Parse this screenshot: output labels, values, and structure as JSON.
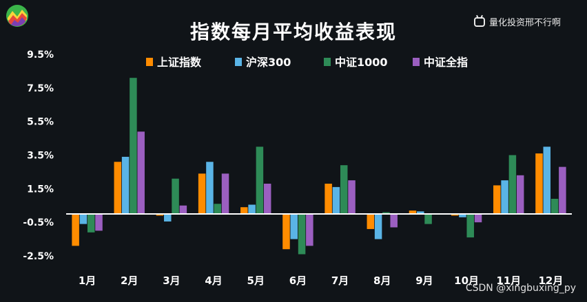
{
  "header": {
    "brand_text": "量化投资邢不行啊"
  },
  "watermark": "CSDN @xingbuxing_py",
  "colors": {
    "background": "#101418",
    "axis_text": "#ffffff",
    "baseline": "#ffffff"
  },
  "chart_data": {
    "type": "bar",
    "title": "指数每月平均收益表现",
    "xlabel": "",
    "ylabel": "",
    "ylim": [
      -2.5,
      9.5
    ],
    "yticks": [
      9.5,
      7.5,
      5.5,
      3.5,
      1.5,
      -0.5,
      -2.5
    ],
    "ytick_labels": [
      "9.5%",
      "7.5%",
      "5.5%",
      "3.5%",
      "1.5%",
      "-0.5%",
      "-2.5%"
    ],
    "grid": false,
    "legend_position": "top-center",
    "categories": [
      "1月",
      "2月",
      "3月",
      "4月",
      "5月",
      "6月",
      "7月",
      "8月",
      "9月",
      "10月",
      "11月",
      "12月"
    ],
    "series": [
      {
        "name": "上证指数",
        "color": "#ff8c00",
        "values": [
          -1.9,
          3.1,
          -0.1,
          2.4,
          0.4,
          -2.1,
          1.8,
          -0.9,
          0.2,
          -0.1,
          1.7,
          3.6
        ]
      },
      {
        "name": "沪深300",
        "color": "#5ab4e6",
        "values": [
          -0.6,
          3.4,
          -0.45,
          3.1,
          0.55,
          -1.5,
          1.6,
          -1.5,
          0.15,
          -0.2,
          2.0,
          4.0
        ]
      },
      {
        "name": "中证1000",
        "color": "#2e8b57",
        "values": [
          -1.1,
          8.1,
          2.1,
          0.6,
          4.0,
          -2.4,
          2.9,
          0.1,
          -0.6,
          -1.4,
          3.5,
          0.9
        ]
      },
      {
        "name": "中证全指",
        "color": "#9b5fc0",
        "values": [
          -1.0,
          4.9,
          0.5,
          2.4,
          1.8,
          -1.9,
          2.0,
          -0.8,
          0.0,
          -0.5,
          2.3,
          2.8
        ]
      }
    ]
  }
}
